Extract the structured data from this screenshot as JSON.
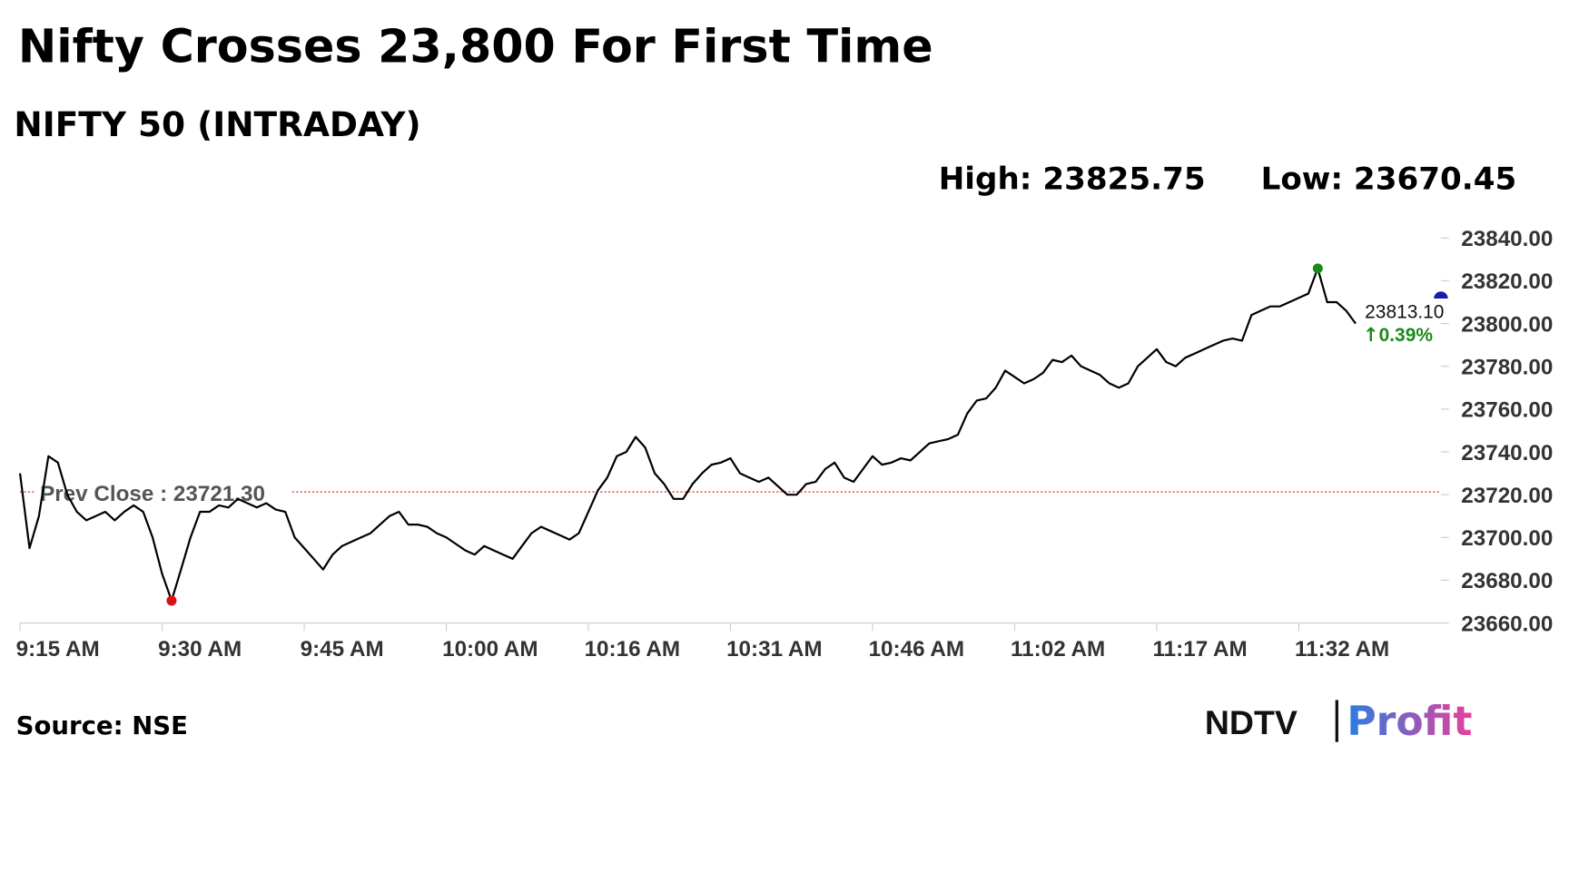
{
  "chart_data": {
    "type": "line",
    "title": "Nifty Crosses 23,800 For First Time",
    "subtitle": "NIFTY 50 (INTRADAY)",
    "high": {
      "label": "High:",
      "value": 23825.75
    },
    "low": {
      "label": "Low:",
      "value": 23670.45
    },
    "prev_close": {
      "label": "Prev Close :",
      "value": {
        "value": 23721.3,
        "label": "23721.30"
      }
    },
    "last": {
      "value": {
        "value": 23813.1,
        "label": "23813.10"
      },
      "change": {
        "value": 0.39,
        "label": "0.39%"
      }
    },
    "source": "Source: NSE",
    "brand": {
      "name": "NDTV",
      "product": "Profit"
    },
    "color": "#000000",
    "series": [
      {
        "name": "NIFTY 50",
        "color": "#000000",
        "values": [
          23730,
          23695,
          23710,
          23738,
          23735,
          23720,
          23712,
          23708,
          23710,
          23712,
          23708,
          23712,
          23715,
          23712,
          23700,
          23683,
          23670.45,
          23685,
          23700,
          23712,
          23712,
          23715,
          23714,
          23718,
          23716,
          23714,
          23716,
          23713,
          23712,
          23700,
          23695,
          23690,
          23685,
          23692,
          23696,
          23698,
          23700,
          23702,
          23706,
          23710,
          23712,
          23706,
          23706,
          23705,
          23702,
          23700,
          23697,
          23694,
          23692,
          23696,
          23694,
          23692,
          23690,
          23696,
          23702,
          23705,
          23703,
          23701,
          23699,
          23702,
          23712,
          23722,
          23728,
          23738,
          23740,
          23747,
          23742,
          23730,
          23725,
          23718,
          23718,
          23725,
          23730,
          23734,
          23735,
          23737,
          23730,
          23728,
          23726,
          23728,
          23724,
          23720,
          23720,
          23725,
          23726,
          23732,
          23735,
          23728,
          23726,
          23732,
          23738,
          23734,
          23735,
          23737,
          23736,
          23740,
          23744,
          23745,
          23746,
          23748,
          23758,
          23764,
          23765,
          23770,
          23778,
          23775,
          23772,
          23774,
          23777,
          23783,
          23782,
          23785,
          23780,
          23778,
          23776,
          23772,
          23770,
          23772,
          23780,
          23784,
          23788,
          23782,
          23780,
          23784,
          23786,
          23788,
          23790,
          23792,
          23793,
          23792,
          23804,
          23806,
          23808,
          23808,
          23810,
          23812,
          23814,
          23825.75,
          23810,
          23810,
          23806,
          23800
        ]
      }
    ],
    "xlim": [
      0,
      150
    ],
    "xticks": [
      {
        "value": 0,
        "label": "9:15 AM"
      },
      {
        "value": 15,
        "label": "9:30 AM"
      },
      {
        "value": 30,
        "label": "9:45 AM"
      },
      {
        "value": 45,
        "label": "10:00 AM"
      },
      {
        "value": 60,
        "label": "10:16 AM"
      },
      {
        "value": 75,
        "label": "10:31 AM"
      },
      {
        "value": 90,
        "label": "10:46 AM"
      },
      {
        "value": 105,
        "label": "11:02 AM"
      },
      {
        "value": 120,
        "label": "11:17 AM"
      },
      {
        "value": 135,
        "label": "11:32 AM"
      }
    ],
    "ylim": [
      23660,
      23840
    ],
    "yticks": [
      {
        "value": 23660,
        "label": "23660.00"
      },
      {
        "value": 23680,
        "label": "23680.00"
      },
      {
        "value": 23700,
        "label": "23700.00"
      },
      {
        "value": 23720,
        "label": "23720.00"
      },
      {
        "value": 23740,
        "label": "23740.00"
      },
      {
        "value": 23760,
        "label": "23760.00"
      },
      {
        "value": 23780,
        "label": "23780.00"
      },
      {
        "value": 23800,
        "label": "23800.00"
      },
      {
        "value": 23820,
        "label": "23820.00"
      },
      {
        "value": 23840,
        "label": "23840.00"
      }
    ]
  }
}
